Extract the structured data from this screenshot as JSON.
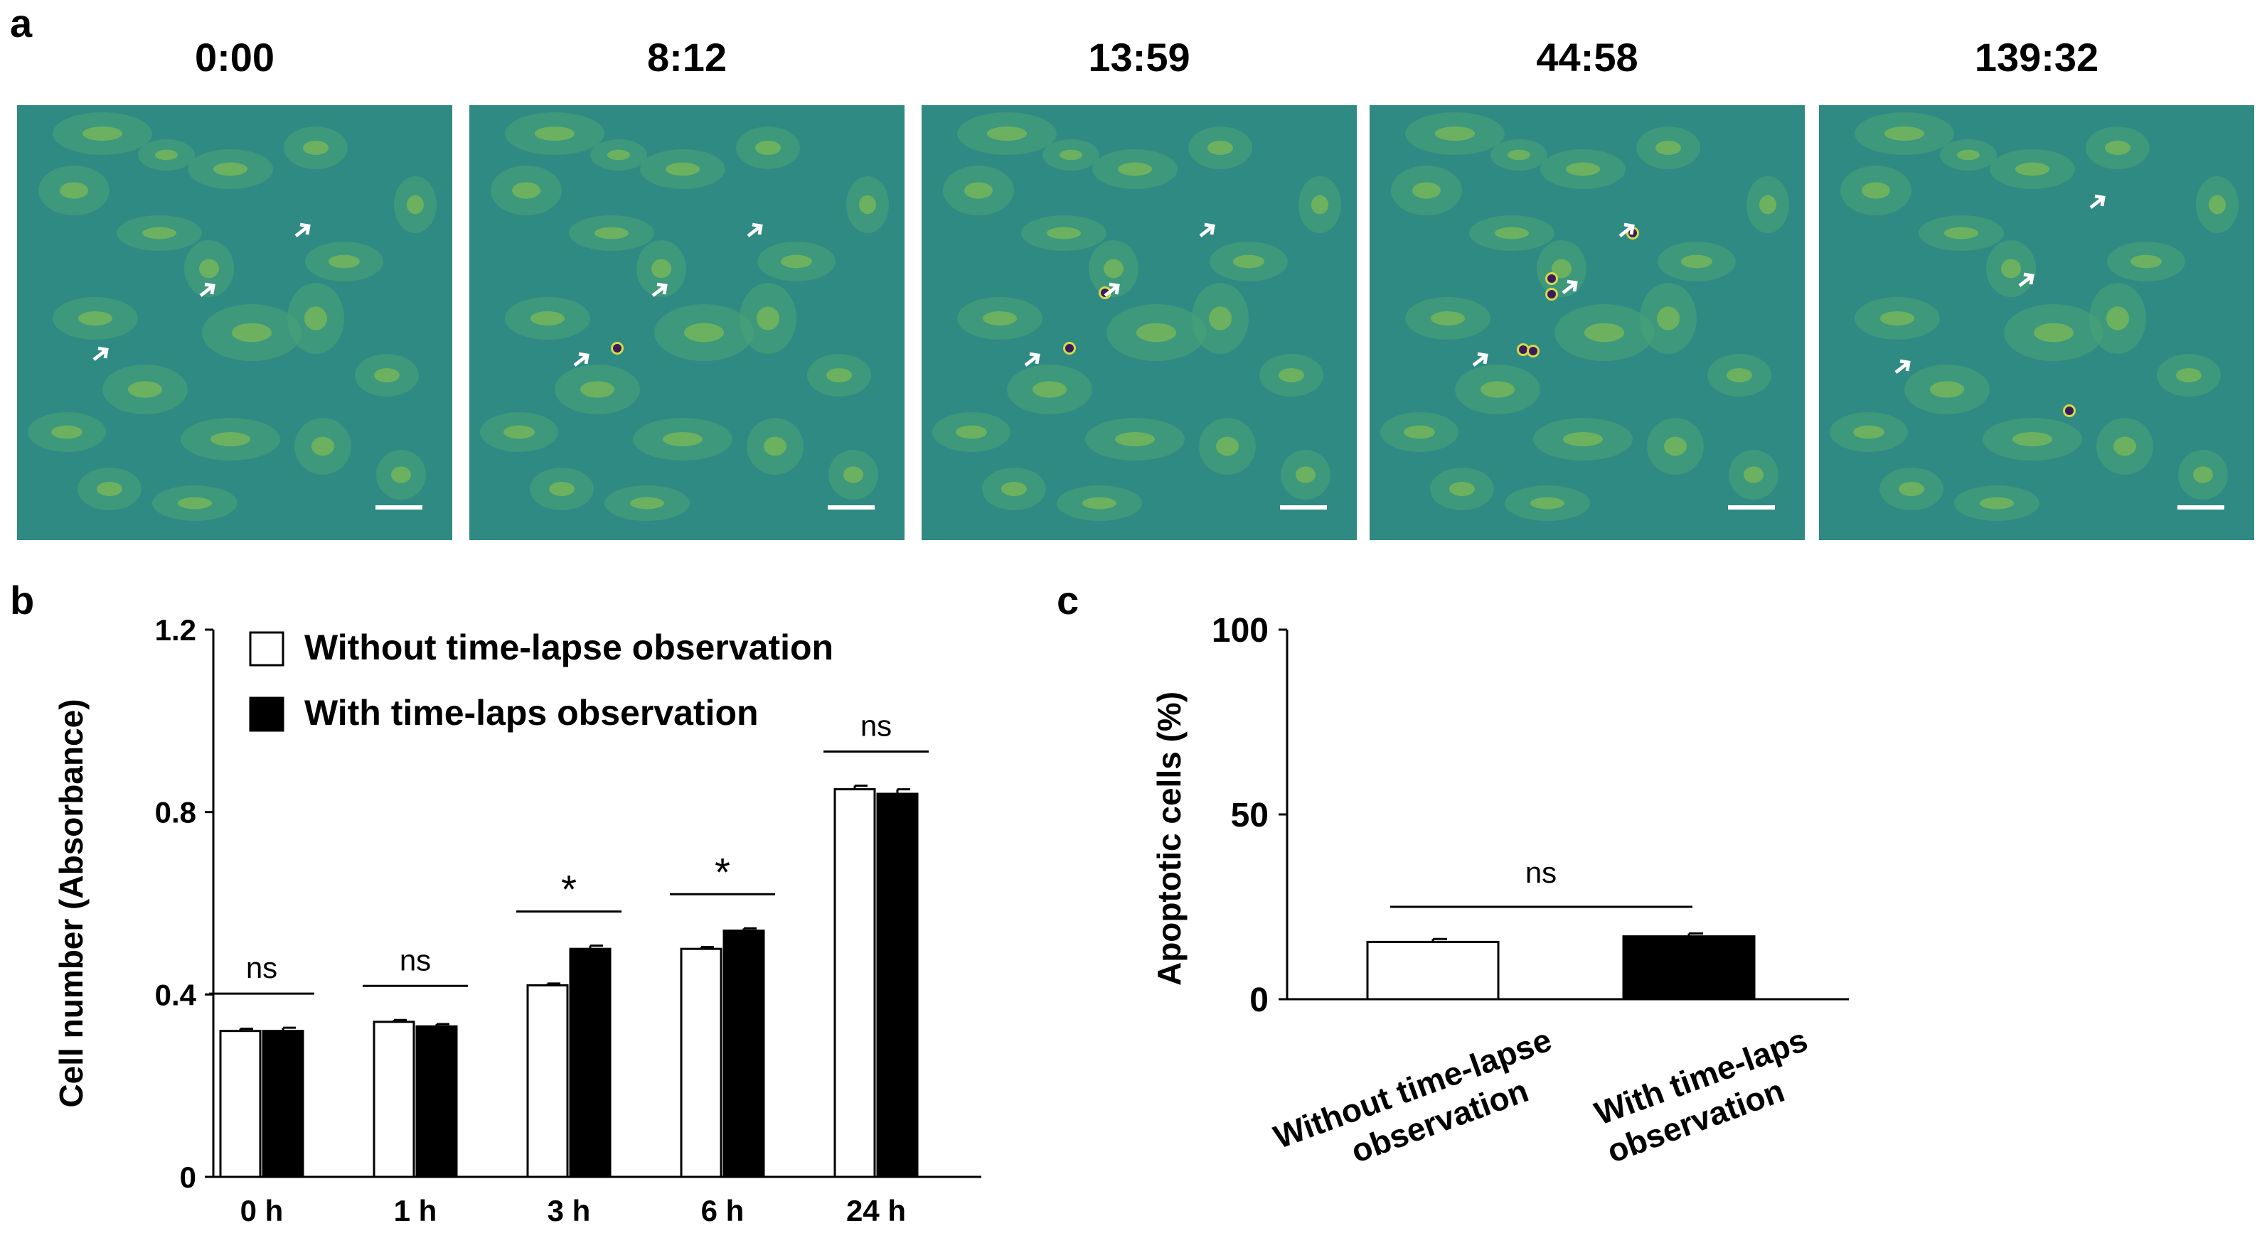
{
  "panel_labels": {
    "a": "a",
    "b": "b",
    "c": "c"
  },
  "panel_a": {
    "timestamps": [
      "0:00",
      "8:12",
      "13:59",
      "44:58",
      "139:32"
    ]
  },
  "chart_data": [
    {
      "type": "bar",
      "panel": "b",
      "categories": [
        "0 h",
        "1 h",
        "3 h",
        "6 h",
        "24 h"
      ],
      "series": [
        {
          "name": "Without time-lapse observation",
          "values": [
            0.32,
            0.34,
            0.42,
            0.5,
            0.85
          ],
          "errors": [
            0.005,
            0.004,
            0.004,
            0.004,
            0.008
          ],
          "fill": "#ffffff"
        },
        {
          "name": "With time-laps observation",
          "values": [
            0.32,
            0.33,
            0.5,
            0.54,
            0.84
          ],
          "errors": [
            0.007,
            0.005,
            0.007,
            0.005,
            0.01
          ],
          "fill": "#000000"
        }
      ],
      "significance": [
        "ns",
        "ns",
        "*",
        "*",
        "ns"
      ],
      "ylabel": "Cell number (Absorbance)",
      "xlabel": "",
      "ylim": [
        0,
        1.2
      ],
      "yticks": [
        "0",
        "0.4",
        "0.8",
        "1.2"
      ],
      "legend": "top-left"
    },
    {
      "type": "bar",
      "panel": "c",
      "categories": [
        "Without time-lapse observation",
        "With time-laps observation"
      ],
      "values": [
        15.5,
        17.0
      ],
      "errors": [
        0.8,
        0.8
      ],
      "fills": [
        "#ffffff",
        "#000000"
      ],
      "significance": "ns",
      "ylabel": "Apoptotic cells (%)",
      "xlabel": "",
      "ylim": [
        0,
        100
      ],
      "yticks": [
        "0",
        "50",
        "100"
      ]
    }
  ]
}
